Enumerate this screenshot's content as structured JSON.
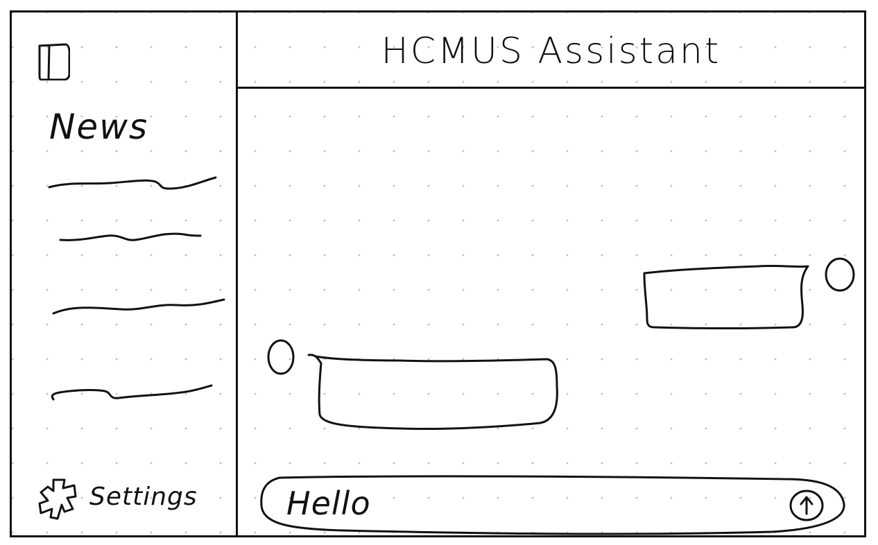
{
  "app": {
    "title": "HCMUS Assistant"
  },
  "sidebar": {
    "toggle_icon": "sidebar-toggle-icon",
    "news_heading": "News",
    "news_items": [
      {
        "id": "news-item-1"
      },
      {
        "id": "news-item-2"
      },
      {
        "id": "news-item-3"
      },
      {
        "id": "news-item-4"
      }
    ],
    "settings_icon": "gear-icon",
    "settings_label": "Settings"
  },
  "chat": {
    "messages": [
      {
        "sender": "user",
        "text": ""
      },
      {
        "sender": "assistant",
        "text": ""
      }
    ]
  },
  "composer": {
    "value": "Hello",
    "send_icon": "arrow-up-icon"
  }
}
